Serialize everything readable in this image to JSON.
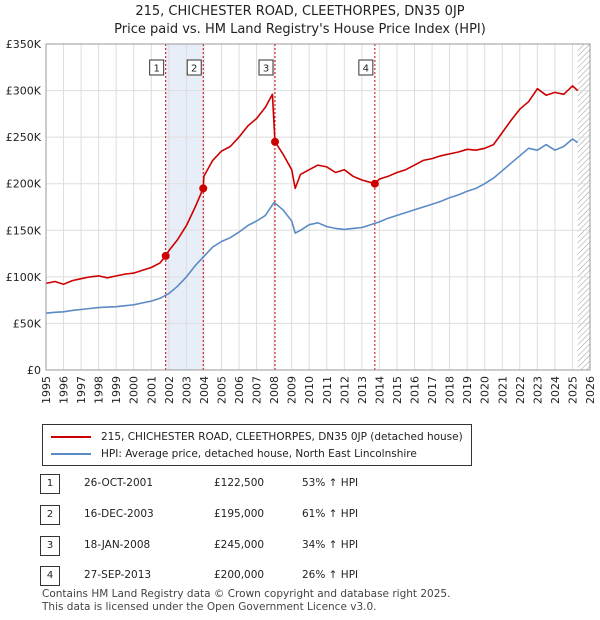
{
  "header": {
    "title_line1": "215, CHICHESTER ROAD, CLEETHORPES, DN35 0JP",
    "title_line2": "Price paid vs. HM Land Registry's House Price Index (HPI)"
  },
  "legend": {
    "price_label": "215, CHICHESTER ROAD, CLEETHORPES, DN35 0JP (detached house)",
    "hpi_label": "HPI: Average price, detached house, North East Lincolnshire"
  },
  "colors": {
    "price": "#cc0000",
    "hpi": "#5b8bc4",
    "shade": "#e8eef8",
    "vline": "#cc0000"
  },
  "transactions": [
    {
      "num": "1",
      "date": "26-OCT-2001",
      "price": "£122,500",
      "hpi": "53% ↑ HPI"
    },
    {
      "num": "2",
      "date": "16-DEC-2003",
      "price": "£195,000",
      "hpi": "61% ↑ HPI"
    },
    {
      "num": "3",
      "date": "18-JAN-2008",
      "price": "£245,000",
      "hpi": "34% ↑ HPI"
    },
    {
      "num": "4",
      "date": "27-SEP-2013",
      "price": "£200,000",
      "hpi": "26% ↑ HPI"
    }
  ],
  "footer": {
    "line1": "Contains HM Land Registry data © Crown copyright and database right 2025.",
    "line2": "This data is licensed under the Open Government Licence v3.0."
  },
  "chart_data": {
    "type": "line",
    "title": "Price paid vs. HM Land Registry's House Price Index (HPI)",
    "xlabel": "",
    "ylabel": "",
    "xlim": [
      1995,
      2026
    ],
    "ylim": [
      0,
      350000
    ],
    "x_ticks": [
      "1995",
      "1996",
      "1997",
      "1998",
      "1999",
      "2000",
      "2001",
      "2002",
      "2003",
      "2004",
      "2005",
      "2006",
      "2007",
      "2008",
      "2009",
      "2010",
      "2011",
      "2012",
      "2013",
      "2014",
      "2015",
      "2016",
      "2017",
      "2018",
      "2019",
      "2020",
      "2021",
      "2022",
      "2023",
      "2024",
      "2025",
      "2026"
    ],
    "y_ticks": [
      "£0",
      "£50K",
      "£100K",
      "£150K",
      "£200K",
      "£250K",
      "£300K",
      "£350K"
    ],
    "y_tick_values": [
      0,
      50000,
      100000,
      150000,
      200000,
      250000,
      300000,
      350000
    ],
    "shaded_periods": [
      [
        2001.82,
        2003.96
      ]
    ],
    "hatched_from": 2025.3,
    "series": [
      {
        "name": "215, CHICHESTER ROAD, CLEETHORPES, DN35 0JP (detached house)",
        "color": "#cc0000",
        "x": [
          1995.0,
          1995.5,
          1996.0,
          1996.5,
          1997.0,
          1997.5,
          1998.0,
          1998.5,
          1999.0,
          1999.5,
          2000.0,
          2000.5,
          2001.0,
          2001.5,
          2001.82,
          2002.0,
          2002.5,
          2003.0,
          2003.5,
          2003.96,
          2004.0,
          2004.5,
          2005.0,
          2005.5,
          2006.0,
          2006.5,
          2007.0,
          2007.5,
          2007.9,
          2008.05,
          2008.5,
          2009.0,
          2009.2,
          2009.5,
          2010.0,
          2010.5,
          2011.0,
          2011.5,
          2012.0,
          2012.5,
          2013.0,
          2013.74,
          2014.0,
          2014.5,
          2015.0,
          2015.5,
          2016.0,
          2016.5,
          2017.0,
          2017.5,
          2018.0,
          2018.5,
          2019.0,
          2019.5,
          2020.0,
          2020.5,
          2021.0,
          2021.5,
          2022.0,
          2022.5,
          2023.0,
          2023.5,
          2024.0,
          2024.5,
          2025.0,
          2025.3
        ],
        "values": [
          93000,
          95000,
          92000,
          96000,
          98000,
          100000,
          101000,
          99000,
          101000,
          103000,
          104000,
          107000,
          110000,
          115000,
          122500,
          128000,
          140000,
          155000,
          175000,
          195000,
          208000,
          225000,
          235000,
          240000,
          250000,
          262000,
          270000,
          282000,
          296000,
          245000,
          232000,
          215000,
          195000,
          210000,
          215000,
          220000,
          218000,
          212000,
          215000,
          208000,
          204000,
          200000,
          205000,
          208000,
          212000,
          215000,
          220000,
          225000,
          227000,
          230000,
          232000,
          234000,
          237000,
          236000,
          238000,
          242000,
          255000,
          268000,
          280000,
          288000,
          302000,
          295000,
          298000,
          296000,
          305000,
          300000
        ]
      },
      {
        "name": "HPI: Average price, detached house, North East Lincolnshire",
        "color": "#5b8bc4",
        "x": [
          1995.0,
          1995.5,
          1996.0,
          1996.5,
          1997.0,
          1997.5,
          1998.0,
          1998.5,
          1999.0,
          1999.5,
          2000.0,
          2000.5,
          2001.0,
          2001.5,
          2002.0,
          2002.5,
          2003.0,
          2003.5,
          2004.0,
          2004.5,
          2005.0,
          2005.5,
          2006.0,
          2006.5,
          2007.0,
          2007.5,
          2008.0,
          2008.5,
          2009.0,
          2009.2,
          2009.5,
          2010.0,
          2010.5,
          2011.0,
          2011.5,
          2012.0,
          2012.5,
          2013.0,
          2013.5,
          2014.0,
          2014.5,
          2015.0,
          2015.5,
          2016.0,
          2016.5,
          2017.0,
          2017.5,
          2018.0,
          2018.5,
          2019.0,
          2019.5,
          2020.0,
          2020.5,
          2021.0,
          2021.5,
          2022.0,
          2022.5,
          2023.0,
          2023.5,
          2024.0,
          2024.5,
          2025.0,
          2025.3
        ],
        "values": [
          61000,
          62000,
          62500,
          64000,
          65000,
          66000,
          67000,
          67500,
          68000,
          69000,
          70000,
          72000,
          74000,
          77000,
          82000,
          90000,
          100000,
          112000,
          122000,
          132000,
          138000,
          142000,
          148000,
          155000,
          160000,
          166000,
          180000,
          172000,
          160000,
          147000,
          150000,
          156000,
          158000,
          154000,
          152000,
          151000,
          152000,
          153000,
          156000,
          159000,
          163000,
          166000,
          169000,
          172000,
          175000,
          178000,
          181000,
          185000,
          188000,
          192000,
          195000,
          200000,
          206000,
          214000,
          222000,
          230000,
          238000,
          236000,
          242000,
          236000,
          240000,
          248000,
          244000
        ]
      }
    ],
    "markers": [
      {
        "label": "1",
        "x": 2001.82,
        "y": 122500
      },
      {
        "label": "2",
        "x": 2003.96,
        "y": 195000
      },
      {
        "label": "3",
        "x": 2008.05,
        "y": 245000
      },
      {
        "label": "4",
        "x": 2013.74,
        "y": 200000
      }
    ]
  }
}
